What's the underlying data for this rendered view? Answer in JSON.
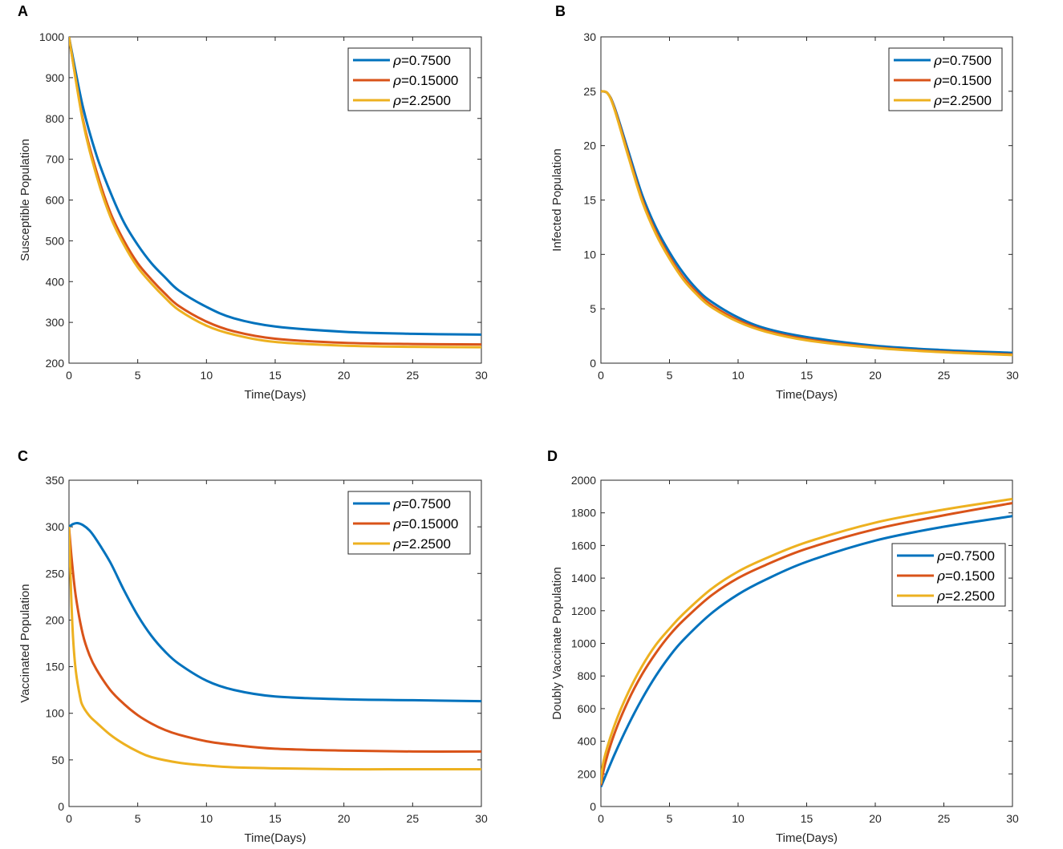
{
  "chart_data": [
    {
      "panel_label": "A",
      "type": "line",
      "title": "",
      "xlabel": "Time(Days)",
      "ylabel": "Susceptible Population",
      "xlim": [
        0,
        30
      ],
      "ylim": [
        200,
        1000
      ],
      "xticks": [
        0,
        5,
        10,
        15,
        20,
        25,
        30
      ],
      "yticks": [
        200,
        300,
        400,
        500,
        600,
        700,
        800,
        900,
        1000
      ],
      "legend_position": "top-right",
      "grid": false,
      "series": [
        {
          "name": "ρ=0.7500",
          "symbol": "ρ",
          "text": "=0.7500",
          "color": "#0072BD",
          "x": [
            0,
            1,
            2,
            3,
            4,
            5,
            6,
            7,
            8,
            10,
            12,
            15,
            20,
            25,
            30
          ],
          "y": [
            1000,
            830,
            710,
            620,
            545,
            490,
            445,
            410,
            378,
            338,
            310,
            290,
            277,
            272,
            270
          ]
        },
        {
          "name": "ρ=0.15000",
          "symbol": "ρ",
          "text": "=0.15000",
          "color": "#D95319",
          "x": [
            0,
            1,
            2,
            3,
            4,
            5,
            6,
            7,
            8,
            10,
            12,
            15,
            20,
            25,
            30
          ],
          "y": [
            1000,
            800,
            670,
            570,
            500,
            445,
            405,
            370,
            340,
            302,
            278,
            260,
            250,
            247,
            246
          ]
        },
        {
          "name": "ρ=2.2500",
          "symbol": "ρ",
          "text": "=2.2500",
          "color": "#EDB120",
          "x": [
            0,
            1,
            2,
            3,
            4,
            5,
            6,
            7,
            8,
            10,
            12,
            15,
            20,
            25,
            30
          ],
          "y": [
            1000,
            795,
            660,
            560,
            490,
            435,
            395,
            360,
            330,
            292,
            270,
            252,
            243,
            240,
            239
          ]
        }
      ]
    },
    {
      "panel_label": "B",
      "type": "line",
      "title": "",
      "xlabel": "Time(Days)",
      "ylabel": "Infected Population",
      "xlim": [
        0,
        30
      ],
      "ylim": [
        0,
        30
      ],
      "xticks": [
        0,
        5,
        10,
        15,
        20,
        25,
        30
      ],
      "yticks": [
        0,
        5,
        10,
        15,
        20,
        25,
        30
      ],
      "legend_position": "top-right",
      "grid": false,
      "series": [
        {
          "name": "ρ=0.7500",
          "symbol": "ρ",
          "text": "=0.7500",
          "color": "#0072BD",
          "x": [
            0,
            0.5,
            1,
            2,
            3,
            4,
            5,
            6,
            7,
            8,
            10,
            12,
            15,
            20,
            25,
            30
          ],
          "y": [
            25,
            24.8,
            23.5,
            19.5,
            15.5,
            12.5,
            10.2,
            8.3,
            6.8,
            5.7,
            4.2,
            3.2,
            2.4,
            1.6,
            1.2,
            0.95
          ]
        },
        {
          "name": "ρ=0.1500",
          "symbol": "ρ",
          "text": "=0.1500",
          "color": "#D95319",
          "x": [
            0,
            0.5,
            1,
            2,
            3,
            4,
            5,
            6,
            7,
            8,
            10,
            12,
            15,
            20,
            25,
            30
          ],
          "y": [
            25,
            24.8,
            23.4,
            19.2,
            15.1,
            12.1,
            9.8,
            7.9,
            6.5,
            5.4,
            3.95,
            3.0,
            2.2,
            1.45,
            1.05,
            0.8
          ]
        },
        {
          "name": "ρ=2.2500",
          "symbol": "ρ",
          "text": "=2.2500",
          "color": "#EDB120",
          "x": [
            0,
            0.5,
            1,
            2,
            3,
            4,
            5,
            6,
            7,
            8,
            10,
            12,
            15,
            20,
            25,
            30
          ],
          "y": [
            25,
            24.8,
            23.3,
            19.0,
            14.9,
            11.9,
            9.6,
            7.7,
            6.3,
            5.2,
            3.8,
            2.9,
            2.1,
            1.4,
            1.0,
            0.75
          ]
        }
      ]
    },
    {
      "panel_label": "C",
      "type": "line",
      "title": "",
      "xlabel": "Time(Days)",
      "ylabel": "Vaccinated Population",
      "xlim": [
        0,
        30
      ],
      "ylim": [
        0,
        350
      ],
      "xticks": [
        0,
        5,
        10,
        15,
        20,
        25,
        30
      ],
      "yticks": [
        0,
        50,
        100,
        150,
        200,
        250,
        300,
        350
      ],
      "legend_position": "top-right",
      "grid": false,
      "series": [
        {
          "name": "ρ=0.7500",
          "symbol": "ρ",
          "text": "=0.7500",
          "color": "#0072BD",
          "x": [
            0,
            0.3,
            0.6,
            1,
            1.5,
            2,
            3,
            4,
            5,
            6,
            7,
            8,
            10,
            12,
            15,
            20,
            25,
            30
          ],
          "y": [
            300,
            303,
            304,
            302,
            296,
            286,
            262,
            232,
            205,
            183,
            166,
            153,
            135,
            125,
            118,
            115,
            114,
            113
          ]
        },
        {
          "name": "ρ=0.15000",
          "symbol": "ρ",
          "text": "=0.15000",
          "color": "#D95319",
          "x": [
            0,
            0.2,
            0.5,
            1,
            1.5,
            2,
            3,
            4,
            5,
            6,
            7,
            8,
            10,
            12,
            15,
            20,
            25,
            30
          ],
          "y": [
            300,
            265,
            225,
            185,
            162,
            147,
            125,
            110,
            98,
            89,
            82,
            77,
            70,
            66,
            62,
            60,
            59,
            59
          ]
        },
        {
          "name": "ρ=2.2500",
          "symbol": "ρ",
          "text": "=2.2500",
          "color": "#EDB120",
          "x": [
            0,
            0.15,
            0.3,
            0.5,
            0.8,
            1,
            1.5,
            2,
            3,
            4,
            5,
            6,
            8,
            10,
            12,
            15,
            20,
            25,
            30
          ],
          "y": [
            300,
            230,
            180,
            145,
            118,
            108,
            97,
            90,
            77,
            67,
            59,
            53,
            47,
            44,
            42,
            41,
            40,
            40,
            40
          ]
        }
      ]
    },
    {
      "panel_label": "D",
      "type": "line",
      "title": "",
      "xlabel": "Time(Days)",
      "ylabel": "Doubly Vaccinate Population",
      "xlim": [
        0,
        30
      ],
      "ylim": [
        0,
        2000
      ],
      "xticks": [
        0,
        5,
        10,
        15,
        20,
        25,
        30
      ],
      "yticks": [
        0,
        200,
        400,
        600,
        800,
        1000,
        1200,
        1400,
        1600,
        1800,
        2000
      ],
      "legend_position": "center-right",
      "grid": false,
      "series": [
        {
          "name": "ρ=0.7500",
          "symbol": "ρ",
          "text": "=0.7500",
          "color": "#0072BD",
          "x": [
            0,
            1,
            2,
            3,
            4,
            5,
            6,
            8,
            10,
            12,
            15,
            20,
            25,
            30
          ],
          "y": [
            120,
            320,
            500,
            660,
            800,
            920,
            1020,
            1180,
            1300,
            1390,
            1500,
            1630,
            1715,
            1780
          ]
        },
        {
          "name": "ρ=0.1500",
          "symbol": "ρ",
          "text": "=0.1500",
          "color": "#D95319",
          "x": [
            0,
            0.3,
            1,
            2,
            3,
            4,
            5,
            6,
            8,
            10,
            12,
            15,
            20,
            25,
            30
          ],
          "y": [
            130,
            260,
            450,
            650,
            810,
            940,
            1050,
            1140,
            1290,
            1400,
            1480,
            1580,
            1700,
            1785,
            1860
          ]
        },
        {
          "name": "ρ=2.2500",
          "symbol": "ρ",
          "text": "=2.2500",
          "color": "#EDB120",
          "x": [
            0,
            0.2,
            1,
            2,
            3,
            4,
            5,
            6,
            8,
            10,
            12,
            15,
            20,
            25,
            30
          ],
          "y": [
            140,
            280,
            500,
            700,
            860,
            990,
            1090,
            1180,
            1330,
            1440,
            1520,
            1620,
            1740,
            1820,
            1885
          ]
        }
      ]
    }
  ]
}
